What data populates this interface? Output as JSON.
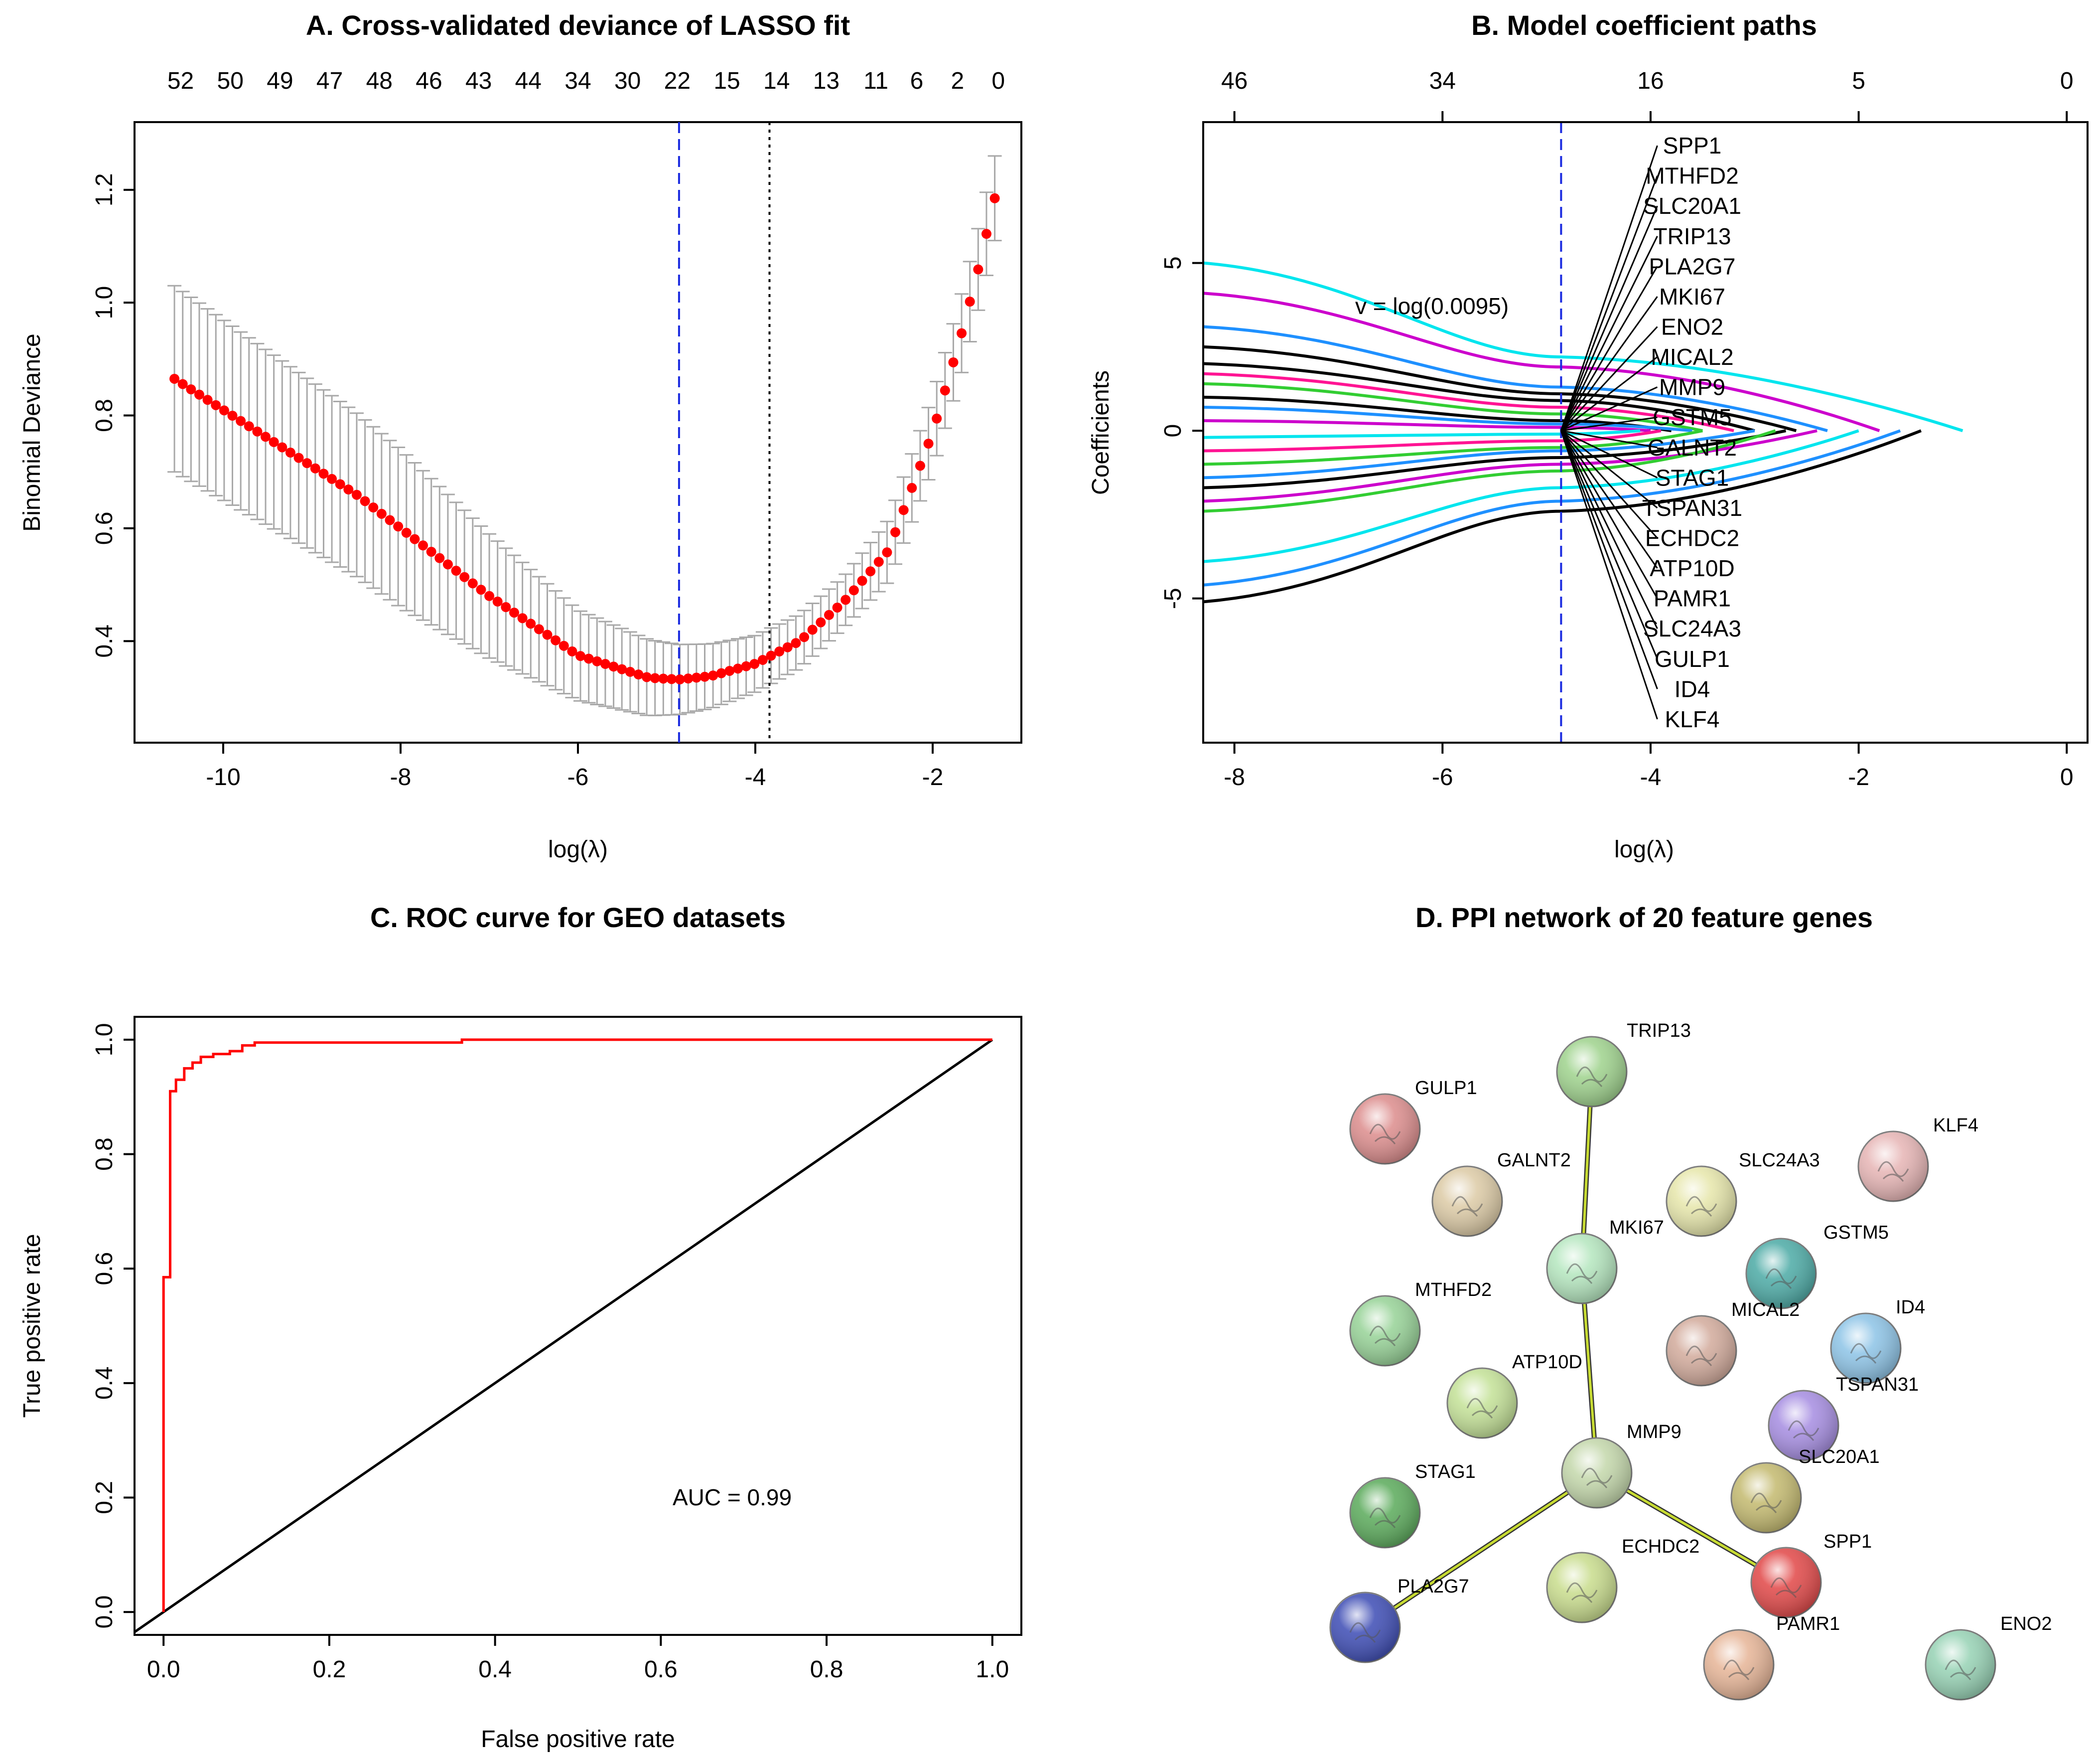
{
  "chart_data": [
    {
      "type": "scatter",
      "panel": "A",
      "title": "A. Cross-validated deviance of LASSO fit",
      "xlabel": "log(λ)",
      "ylabel": "Binomial Deviance",
      "xlim": [
        -11.0,
        -1.0
      ],
      "ylim": [
        0.22,
        1.32
      ],
      "x_ticks": [
        -10,
        -8,
        -6,
        -4,
        -2
      ],
      "x_tick_labels": [
        "-10",
        "-8",
        "-6",
        "-4",
        "-2"
      ],
      "y_ticks": [
        0.4,
        0.6,
        0.8,
        1.0,
        1.2
      ],
      "y_tick_labels": [
        "0.4",
        "0.6",
        "0.8",
        "1.0",
        "1.2"
      ],
      "top_axis_label_positions": [
        -10.48,
        -9.92,
        -9.36,
        -8.8,
        -8.24,
        -7.68,
        -7.12,
        -6.56,
        -6.0,
        -5.44,
        -4.88,
        -4.32,
        -3.76,
        -3.2,
        -2.64,
        -2.18,
        -1.72,
        -1.26
      ],
      "top_axis_labels": [
        "52",
        "50",
        "49",
        "47",
        "48",
        "46",
        "43",
        "44",
        "34",
        "30",
        "22",
        "15",
        "14",
        "13",
        "11",
        "6",
        "2",
        "0"
      ],
      "lambda_min_log": -4.86,
      "lambda_1se_log": -3.84,
      "x_range": [
        -10.55,
        -1.3
      ],
      "n_points": 100,
      "curve_control": [
        [
          -10.55,
          0.865
        ],
        [
          -8.5,
          0.66
        ],
        [
          -7.0,
          0.48
        ],
        [
          -6.0,
          0.375
        ],
        [
          -5.2,
          0.335
        ],
        [
          -4.86,
          0.332
        ],
        [
          -4.5,
          0.338
        ],
        [
          -4.0,
          0.36
        ],
        [
          -3.5,
          0.4
        ],
        [
          -3.0,
          0.47
        ],
        [
          -2.5,
          0.56
        ],
        [
          -2.0,
          0.77
        ],
        [
          -1.7,
          0.93
        ],
        [
          -1.5,
          1.05
        ],
        [
          -1.3,
          1.185
        ]
      ],
      "se_control": [
        [
          -10.55,
          0.165
        ],
        [
          -8.0,
          0.14
        ],
        [
          -6.0,
          0.08
        ],
        [
          -4.86,
          0.062
        ],
        [
          -4.0,
          0.05
        ],
        [
          -3.0,
          0.045
        ],
        [
          -2.0,
          0.065
        ],
        [
          -1.3,
          0.075
        ]
      ],
      "point_color": "#ff0000",
      "errorbar_color": "#a8a8a8",
      "min_line_color": "#1c2ce0"
    },
    {
      "type": "line",
      "panel": "B",
      "title": "B. Model coefficient paths",
      "xlabel": "log(λ)",
      "ylabel": "Coefficients",
      "xlim": [
        -8.3,
        0.2
      ],
      "ylim": [
        -9.3,
        9.2
      ],
      "x_ticks": [
        -8,
        -6,
        -4,
        -2,
        0
      ],
      "x_tick_labels": [
        "-8",
        "-6",
        "-4",
        "-2",
        "0"
      ],
      "y_ticks": [
        -5,
        0,
        5
      ],
      "y_tick_labels": [
        "-5",
        "0",
        "5"
      ],
      "top_axis_label_positions": [
        -8,
        -6,
        -4,
        -2,
        0
      ],
      "top_axis_labels": [
        "46",
        "34",
        "16",
        "5",
        "0"
      ],
      "annotation": "v = log(0.0095)",
      "selected_log_lambda": -4.86,
      "label_x": -3.6,
      "labels": [
        "SPP1",
        "MTHFD2",
        "SLC20A1",
        "TRIP13",
        "PLA2G7",
        "MKI67",
        "ENO2",
        "MICAL2",
        "MMP9",
        "GSTM5",
        "GALNT2",
        "STAG1",
        "TSPAN31",
        "ECHDC2",
        "ATP10D",
        "PAMR1",
        "SLC24A3",
        "GULP1",
        "ID4",
        "KLF4"
      ],
      "label_y_values": [
        8.5,
        7.6,
        6.7,
        5.8,
        4.9,
        4.0,
        3.1,
        2.2,
        1.3,
        0.4,
        -0.5,
        -1.4,
        -2.3,
        -3.2,
        -4.1,
        -5.0,
        -5.9,
        -6.8,
        -7.7,
        -8.6
      ],
      "series": [
        {
          "color": "#00e5ee",
          "start": 5.0,
          "mid": 2.2,
          "end_x": -1.0
        },
        {
          "color": "#cc00cc",
          "start": 4.1,
          "mid": 1.9,
          "end_x": -1.8
        },
        {
          "color": "#1e90ff",
          "start": 3.1,
          "mid": 1.3,
          "end_x": -2.3
        },
        {
          "color": "#000000",
          "start": 2.5,
          "mid": 1.1,
          "end_x": -2.6
        },
        {
          "color": "#000000",
          "start": 2.0,
          "mid": 0.9,
          "end_x": -3.0
        },
        {
          "color": "#ff1493",
          "start": 1.7,
          "mid": 0.7,
          "end_x": -3.2
        },
        {
          "color": "#32cd32",
          "start": 1.4,
          "mid": 0.5,
          "end_x": -3.5
        },
        {
          "color": "#000000",
          "start": 1.0,
          "mid": 0.3,
          "end_x": -3.8
        },
        {
          "color": "#1e90ff",
          "start": 0.7,
          "mid": 0.2,
          "end_x": -3.6
        },
        {
          "color": "#cc00cc",
          "start": 0.3,
          "mid": 0.1,
          "end_x": -4.0
        },
        {
          "color": "#00e5ee",
          "start": -0.2,
          "mid": -0.1,
          "end_x": -4.1
        },
        {
          "color": "#ff1493",
          "start": -0.6,
          "mid": -0.3,
          "end_x": -3.9
        },
        {
          "color": "#32cd32",
          "start": -1.0,
          "mid": -0.5,
          "end_x": -3.5
        },
        {
          "color": "#1e90ff",
          "start": -1.4,
          "mid": -0.6,
          "end_x": -3.0
        },
        {
          "color": "#000000",
          "start": -1.7,
          "mid": -0.8,
          "end_x": -2.7
        },
        {
          "color": "#cc00cc",
          "start": -2.1,
          "mid": -1.0,
          "end_x": -2.4
        },
        {
          "color": "#00e5ee",
          "start": -3.9,
          "mid": -1.7,
          "end_x": -2.0
        },
        {
          "color": "#1e90ff",
          "start": -4.6,
          "mid": -2.1,
          "end_x": -1.6
        },
        {
          "color": "#000000",
          "start": -5.1,
          "mid": -2.4,
          "end_x": -1.4
        },
        {
          "color": "#32cd32",
          "start": -2.4,
          "mid": -1.2,
          "end_x": -2.8
        }
      ]
    },
    {
      "type": "line",
      "panel": "C",
      "title": "C. ROC curve for GEO datasets",
      "xlabel": "False positive rate",
      "ylabel": "True positive rate",
      "xlim": [
        -0.035,
        1.035
      ],
      "ylim": [
        -0.04,
        1.04
      ],
      "x_ticks": [
        0.0,
        0.2,
        0.4,
        0.6,
        0.8,
        1.0
      ],
      "x_tick_labels": [
        "0.0",
        "0.2",
        "0.4",
        "0.6",
        "0.8",
        "1.0"
      ],
      "y_ticks": [
        0.0,
        0.2,
        0.4,
        0.6,
        0.8,
        1.0
      ],
      "y_tick_labels": [
        "0.0",
        "0.2",
        "0.4",
        "0.6",
        "0.8",
        "1.0"
      ],
      "roc_x": [
        0.0,
        0.0,
        0.008,
        0.008,
        0.015,
        0.015,
        0.025,
        0.025,
        0.035,
        0.035,
        0.045,
        0.045,
        0.06,
        0.06,
        0.08,
        0.08,
        0.095,
        0.095,
        0.11,
        0.11,
        0.36,
        0.36,
        1.0
      ],
      "roc_y": [
        0.0,
        0.585,
        0.585,
        0.91,
        0.91,
        0.93,
        0.93,
        0.95,
        0.95,
        0.96,
        0.96,
        0.97,
        0.97,
        0.975,
        0.975,
        0.98,
        0.98,
        0.99,
        0.99,
        0.995,
        0.995,
        1.0,
        1.0
      ],
      "roc_color": "#ff0000",
      "diagonal_color": "#000000",
      "auc_label": "AUC =  0.99",
      "auc_value": 0.99
    }
  ],
  "ppi": {
    "title": "D. PPI network of 20 feature genes",
    "nodes": [
      {
        "id": "TRIP13",
        "label": "TRIP13",
        "color": "#9ed28c"
      },
      {
        "id": "GULP1",
        "label": "GULP1",
        "color": "#dc8c8c"
      },
      {
        "id": "KLF4",
        "label": "KLF4",
        "color": "#e6b4b4"
      },
      {
        "id": "GALNT2",
        "label": "GALNT2",
        "color": "#dccaa5"
      },
      {
        "id": "SLC24A3",
        "label": "SLC24A3",
        "color": "#e6e6aa"
      },
      {
        "id": "MKI67",
        "label": "MKI67",
        "color": "#b4e6be"
      },
      {
        "id": "GSTM5",
        "label": "GSTM5",
        "color": "#4baaa5"
      },
      {
        "id": "MTHFD2",
        "label": "MTHFD2",
        "color": "#96d296"
      },
      {
        "id": "MICAL2",
        "label": "MICAL2",
        "color": "#d2aa9b"
      },
      {
        "id": "ID4",
        "label": "ID4",
        "color": "#8cc3e6"
      },
      {
        "id": "ATP10D",
        "label": "ATP10D",
        "color": "#c3e196"
      },
      {
        "id": "TSPAN31",
        "label": "TSPAN31",
        "color": "#a58ce1"
      },
      {
        "id": "MMP9",
        "label": "MMP9",
        "color": "#c3d7aa"
      },
      {
        "id": "SLC20A1",
        "label": "SLC20A1",
        "color": "#c3b96e"
      },
      {
        "id": "STAG1",
        "label": "STAG1",
        "color": "#5aaa5a"
      },
      {
        "id": "SPP1",
        "label": "SPP1",
        "color": "#e14646"
      },
      {
        "id": "ECHDC2",
        "label": "ECHDC2",
        "color": "#c8dc8c"
      },
      {
        "id": "PLA2G7",
        "label": "PLA2G7",
        "color": "#3c4bb4"
      },
      {
        "id": "PAMR1",
        "label": "PAMR1",
        "color": "#e6b496"
      },
      {
        "id": "ENO2",
        "label": "ENO2",
        "color": "#96d2b4"
      }
    ],
    "edges": [
      {
        "source": "TRIP13",
        "target": "MKI67"
      },
      {
        "source": "MKI67",
        "target": "MMP9"
      },
      {
        "source": "MMP9",
        "target": "PLA2G7"
      },
      {
        "source": "MMP9",
        "target": "SPP1"
      }
    ]
  }
}
